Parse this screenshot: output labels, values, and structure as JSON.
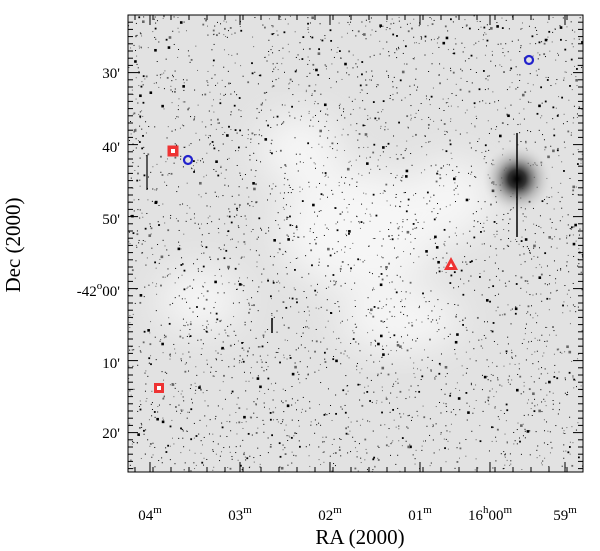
{
  "axes": {
    "x_title": "RA (2000)",
    "y_title": "Dec (2000)",
    "x_tick_labels": [
      [
        {
          "t": "04"
        },
        {
          "s": "m"
        }
      ],
      [
        {
          "t": "03"
        },
        {
          "s": "m"
        }
      ],
      [
        {
          "t": "02"
        },
        {
          "s": "m"
        }
      ],
      [
        {
          "t": "01"
        },
        {
          "s": "m"
        }
      ],
      [
        {
          "t": "16"
        },
        {
          "s": "h"
        },
        {
          "t": "00"
        },
        {
          "s": "m"
        }
      ],
      [
        {
          "t": "59"
        },
        {
          "s": "m"
        }
      ]
    ],
    "y_tick_labels": [
      [
        {
          "t": "30'"
        }
      ],
      [
        {
          "t": "40'"
        }
      ],
      [
        {
          "t": "50'"
        }
      ],
      [
        {
          "t": "-42"
        },
        {
          "s": "o"
        },
        {
          "t": "00'"
        }
      ],
      [
        {
          "t": "10'"
        }
      ],
      [
        {
          "t": "20'"
        }
      ]
    ]
  }
}
